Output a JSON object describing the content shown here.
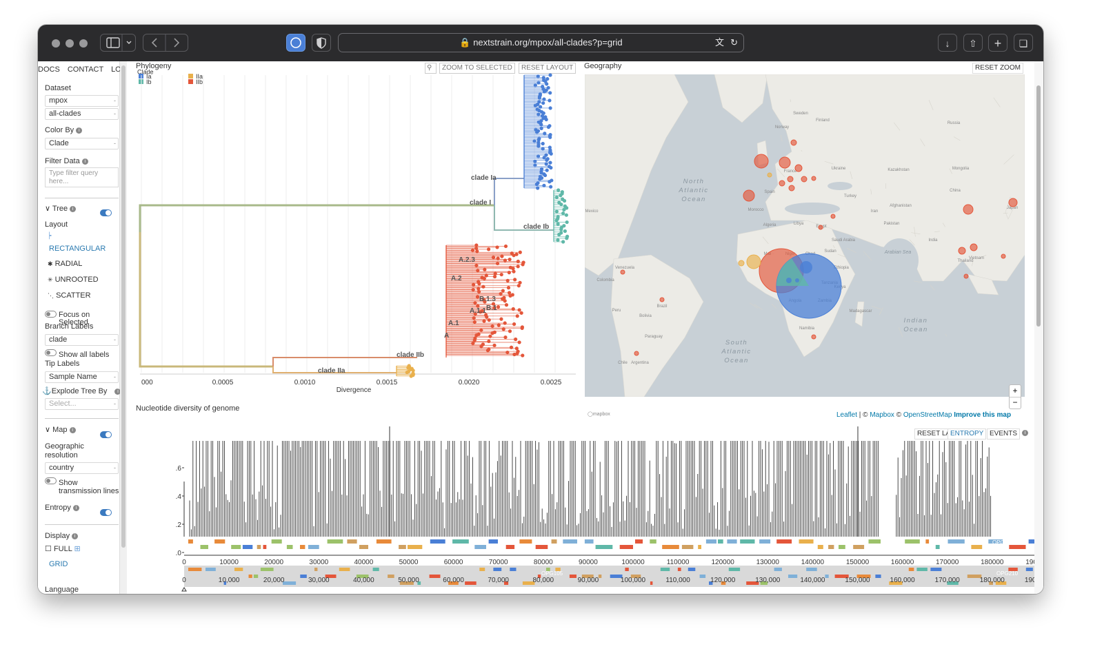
{
  "browser": {
    "url": "nextstrain.org/mpox/all-clades?p=grid",
    "sidebar_btn_icon": "sidebar-icon",
    "back_icon": "chevron-left-icon",
    "forward_icon": "chevron-right-icon"
  },
  "nav": {
    "docs": "DOCS",
    "contact": "CONTACT",
    "login": "LO"
  },
  "sidebar": {
    "dataset_label": "Dataset",
    "dataset_values": [
      "mpox",
      "all-clades"
    ],
    "color_by_label": "Color By",
    "color_by_value": "Clade",
    "filter_label": "Filter Data",
    "filter_placeholder": "Type filter query here...",
    "tree_label": "Tree",
    "layout_label": "Layout",
    "layouts": [
      "RECTANGULAR",
      "RADIAL",
      "UNROOTED",
      "SCATTER"
    ],
    "focus_label": "Focus on Selected",
    "branch_labels_label": "Branch Labels",
    "branch_labels_value": "clade",
    "show_all_labels": "Show all labels",
    "tip_labels_label": "Tip Labels",
    "tip_labels_value": "Sample Name",
    "explode_label": "Explode Tree By",
    "explode_placeholder": "Select...",
    "map_label": "Map",
    "geo_res_label": "Geographic resolution",
    "geo_res_value": "country",
    "transmission_label": "Show transmission lines",
    "entropy_label": "Entropy",
    "display_label": "Display",
    "display_full": "FULL",
    "display_grid": "GRID",
    "language_label": "Language"
  },
  "phylogeny": {
    "title": "Phylogeny",
    "legend_title": "Clade",
    "legend": [
      {
        "label": "Ia",
        "color": "#4a7fd6"
      },
      {
        "label": "Ib",
        "color": "#5fb8a8"
      },
      {
        "label": "IIa",
        "color": "#e9b04c"
      },
      {
        "label": "IIb",
        "color": "#e4563a"
      }
    ],
    "zoom_to_selected": "ZOOM TO SELECTED",
    "reset_layout": "RESET LAYOUT",
    "axis_label": "Divergence",
    "ticks": [
      "000",
      "0.0005",
      "0.0010",
      "0.0015",
      "0.0020",
      "0.0025"
    ],
    "branch_labels": [
      "clade Ia",
      "clade I",
      "clade Ib",
      "A.2.3",
      "A.2",
      "B.1.3",
      "B.1",
      "A.1.1",
      "A.1",
      "A",
      "clade IIb",
      "clade IIa"
    ]
  },
  "map": {
    "title": "Geography",
    "reset_zoom": "RESET ZOOM",
    "zoom_in": "+",
    "zoom_out": "−",
    "attribution": {
      "leaflet": "Leaflet",
      "sep1": " | © ",
      "mapbox": "Mapbox",
      "sep2": " © ",
      "osm": "OpenStreetMap",
      "improve": "Improve this map"
    },
    "labels": [
      "North Atlantic Ocean",
      "South Atlantic Ocean",
      "Indian Ocean",
      "Arabian Sea",
      "Russia",
      "Finland",
      "Sweden",
      "Norway",
      "Ukraine",
      "Kazakhstan",
      "Turkey",
      "Iran",
      "Afghanistan",
      "Pakistan",
      "India",
      "China",
      "Mongolia",
      "Algeria",
      "Libya",
      "Egypt",
      "Saudi Arabia",
      "Mali",
      "Niger",
      "Chad",
      "Sudan",
      "Ethiopia",
      "Kenya",
      "Angola",
      "Zambia",
      "Tanzania",
      "Brazil",
      "Peru",
      "Bolivia",
      "Argentina",
      "Paraguay",
      "Chile",
      "Venezuela",
      "Colombia",
      "Namibia",
      "Madagascar",
      "France",
      "Spain",
      "Japan",
      "Vietnam",
      "Thailand",
      "Morocco",
      "Mexico"
    ],
    "logo": "mapbox"
  },
  "entropy": {
    "title": "Nucleotide diversity of genome",
    "reset_layout": "RESET LA",
    "entropy_btn": "ENTROPY",
    "events_btn": "EVENTS",
    "y_ticks": [
      ".6",
      ".4",
      ".2",
      ".0"
    ],
    "x_ticks": [
      "0",
      "10000",
      "20000",
      "30000",
      "40000",
      "50000",
      "60000",
      "70000",
      "80000",
      "90000",
      "100000",
      "110000",
      "120000",
      "130000",
      "140000",
      "150000",
      "160000",
      "170000",
      "180000",
      "190000"
    ],
    "x_ticks_overview": [
      "0",
      "10,000",
      "20,000",
      "30,000",
      "40,000",
      "50,000",
      "60,000",
      "70,000",
      "80,000",
      "90,000",
      "100,000",
      "110,000",
      "120,000",
      "130,000",
      "140,000",
      "150,000",
      "160,000",
      "170,000",
      "180,000",
      "190,000"
    ],
    "gene_labels": [
      "OPG210",
      "OPG105",
      "OPG210"
    ]
  }
}
